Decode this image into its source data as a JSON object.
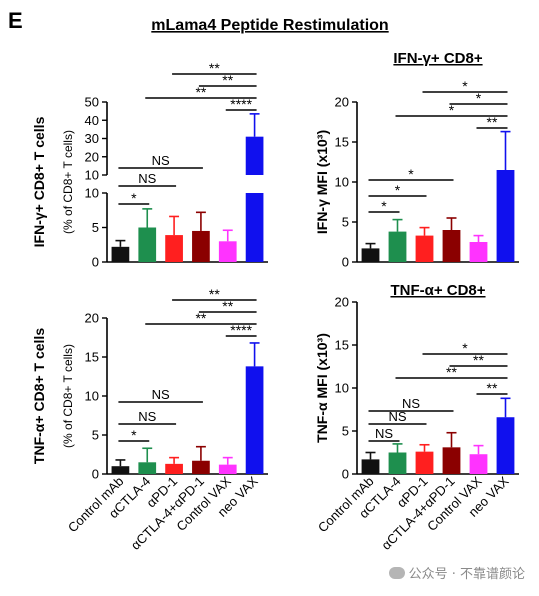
{
  "figure": {
    "panel_letter": "E",
    "main_title": "mLama4 Peptide Restimulation",
    "watermark": "公众号 · 不靠谱颜论"
  },
  "groups": [
    "Control mAb",
    "αCTLA-4",
    "αPD-1",
    "αCTLA-4+αPD-1",
    "Control VAX",
    "neo VAX"
  ],
  "colors": [
    "#111111",
    "#1e8f4e",
    "#ff1f1f",
    "#8b0000",
    "#ff33ff",
    "#1010ee"
  ],
  "chart_data": [
    {
      "type": "bar",
      "id": "ifng-percent",
      "title": "",
      "ylabel_lines": [
        "IFN-γ+ CD8+ T cells",
        "(% of CD8+ T cells)"
      ],
      "categories": [
        "Control mAb",
        "αCTLA-4",
        "αPD-1",
        "αCTLA-4+αPD-1",
        "Control VAX",
        "neo VAX"
      ],
      "values": [
        2.2,
        5.0,
        3.9,
        4.5,
        3.0,
        31.0
      ],
      "errors": [
        0.9,
        2.7,
        2.7,
        2.7,
        1.6,
        12.5
      ],
      "y_axis": "broken",
      "y_lower": {
        "range": [
          0,
          10
        ],
        "ticks": [
          "0",
          "5",
          "10"
        ]
      },
      "y_upper": {
        "range": [
          10,
          50
        ],
        "ticks": [
          "10",
          "20",
          "30",
          "40",
          "50"
        ]
      },
      "significance": [
        {
          "from": 0,
          "to": 1,
          "label": "*"
        },
        {
          "from": 0,
          "to": 2,
          "label": "NS"
        },
        {
          "from": 0,
          "to": 3,
          "label": "NS"
        },
        {
          "from": 4,
          "to": 5,
          "label": "****"
        },
        {
          "from": 1,
          "to": 5,
          "label": "**"
        },
        {
          "from": 3,
          "to": 5,
          "label": "**"
        },
        {
          "from": 2,
          "to": 5,
          "label": "**"
        }
      ]
    },
    {
      "type": "bar",
      "id": "ifng-mfi",
      "title": "IFN-γ+ CD8+",
      "ylabel_lines": [
        "IFN-γ  MFI (x10³)"
      ],
      "categories": [
        "Control mAb",
        "αCTLA-4",
        "αPD-1",
        "αCTLA-4+αPD-1",
        "Control VAX",
        "neo VAX"
      ],
      "values": [
        1.7,
        3.8,
        3.3,
        4.0,
        2.5,
        11.5
      ],
      "errors": [
        0.6,
        1.5,
        1.0,
        1.5,
        0.8,
        4.8
      ],
      "ylim": [
        0,
        20
      ],
      "yticks": [
        "0",
        "5",
        "10",
        "15",
        "20"
      ],
      "significance": [
        {
          "from": 0,
          "to": 1,
          "label": "*"
        },
        {
          "from": 0,
          "to": 2,
          "label": "*"
        },
        {
          "from": 0,
          "to": 3,
          "label": "*"
        },
        {
          "from": 4,
          "to": 5,
          "label": "**"
        },
        {
          "from": 1,
          "to": 5,
          "label": "*"
        },
        {
          "from": 3,
          "to": 5,
          "label": "*"
        },
        {
          "from": 2,
          "to": 5,
          "label": "*"
        }
      ]
    },
    {
      "type": "bar",
      "id": "tnfa-percent",
      "title": "",
      "ylabel_lines": [
        "TNF-α+ CD8+ T cells",
        "(% of CD8+ T cells)"
      ],
      "categories": [
        "Control mAb",
        "αCTLA-4",
        "αPD-1",
        "αCTLA-4+αPD-1",
        "Control VAX",
        "neo VAX"
      ],
      "values": [
        1.0,
        1.5,
        1.3,
        1.7,
        1.2,
        13.8
      ],
      "errors": [
        0.8,
        1.8,
        0.8,
        1.8,
        0.9,
        3.0
      ],
      "ylim": [
        0,
        20
      ],
      "yticks": [
        "0",
        "5",
        "10",
        "15",
        "20"
      ],
      "significance": [
        {
          "from": 0,
          "to": 1,
          "label": "*"
        },
        {
          "from": 0,
          "to": 2,
          "label": "NS"
        },
        {
          "from": 0,
          "to": 3,
          "label": "NS"
        },
        {
          "from": 4,
          "to": 5,
          "label": "****"
        },
        {
          "from": 1,
          "to": 5,
          "label": "**"
        },
        {
          "from": 3,
          "to": 5,
          "label": "**"
        },
        {
          "from": 2,
          "to": 5,
          "label": "**"
        }
      ]
    },
    {
      "type": "bar",
      "id": "tnfa-mfi",
      "title": "TNF-α+ CD8+",
      "ylabel_lines": [
        "TNF-α  MFI (x10³)"
      ],
      "categories": [
        "Control mAb",
        "αCTLA-4",
        "αPD-1",
        "αCTLA-4+αPD-1",
        "Control VAX",
        "neo VAX"
      ],
      "values": [
        1.7,
        2.5,
        2.6,
        3.1,
        2.3,
        6.6
      ],
      "errors": [
        0.8,
        1.0,
        0.8,
        1.7,
        1.0,
        2.2
      ],
      "ylim": [
        0,
        20
      ],
      "yticks": [
        "0",
        "5",
        "10",
        "15",
        "20"
      ],
      "significance": [
        {
          "from": 0,
          "to": 1,
          "label": "NS"
        },
        {
          "from": 0,
          "to": 2,
          "label": "NS"
        },
        {
          "from": 0,
          "to": 3,
          "label": "NS"
        },
        {
          "from": 4,
          "to": 5,
          "label": "**"
        },
        {
          "from": 1,
          "to": 5,
          "label": "**"
        },
        {
          "from": 3,
          "to": 5,
          "label": "**"
        },
        {
          "from": 2,
          "to": 5,
          "label": "*"
        }
      ]
    }
  ]
}
